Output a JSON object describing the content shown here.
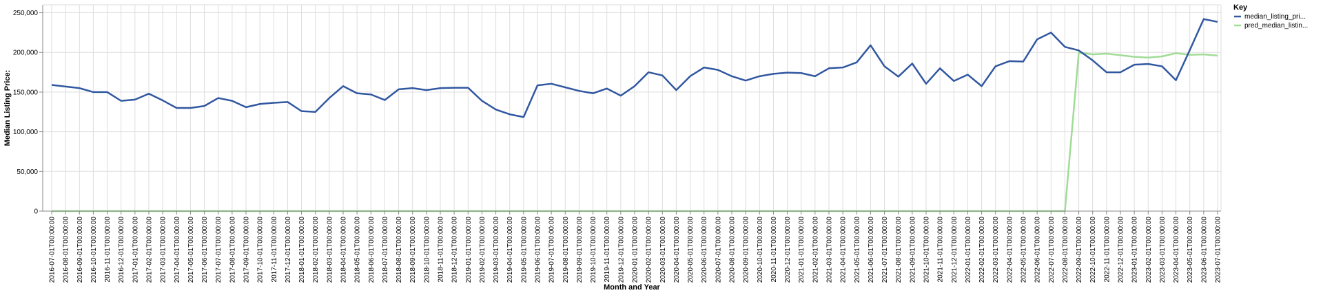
{
  "chart_data": {
    "type": "line",
    "xlabel": "Month and Year",
    "ylabel": "Median Listing Price:",
    "ylim": [
      0,
      260000
    ],
    "y_ticks": [
      0,
      50000,
      100000,
      150000,
      200000,
      250000
    ],
    "y_tick_labels": [
      "0",
      "50,000",
      "100,000",
      "150,000",
      "200,000",
      "250,000"
    ],
    "grid": true,
    "legend_title": "Key",
    "legend_position": "top-right",
    "x": [
      "2016-07-01T00:00:00",
      "2016-08-01T00:00:00",
      "2016-09-01T00:00:00",
      "2016-10-01T00:00:00",
      "2016-11-01T00:00:00",
      "2016-12-01T00:00:00",
      "2017-01-01T00:00:00",
      "2017-02-01T00:00:00",
      "2017-03-01T00:00:00",
      "2017-04-01T00:00:00",
      "2017-05-01T00:00:00",
      "2017-06-01T00:00:00",
      "2017-07-01T00:00:00",
      "2017-08-01T00:00:00",
      "2017-09-01T00:00:00",
      "2017-10-01T00:00:00",
      "2017-11-01T00:00:00",
      "2017-12-01T00:00:00",
      "2018-01-01T00:00:00",
      "2018-02-01T00:00:00",
      "2018-03-01T00:00:00",
      "2018-04-01T00:00:00",
      "2018-05-01T00:00:00",
      "2018-06-01T00:00:00",
      "2018-07-01T00:00:00",
      "2018-08-01T00:00:00",
      "2018-09-01T00:00:00",
      "2018-10-01T00:00:00",
      "2018-11-01T00:00:00",
      "2018-12-01T00:00:00",
      "2019-01-01T00:00:00",
      "2019-02-01T00:00:00",
      "2019-03-01T00:00:00",
      "2019-04-01T00:00:00",
      "2019-05-01T00:00:00",
      "2019-06-01T00:00:00",
      "2019-07-01T00:00:00",
      "2019-08-01T00:00:00",
      "2019-09-01T00:00:00",
      "2019-10-01T00:00:00",
      "2019-11-01T00:00:00",
      "2019-12-01T00:00:00",
      "2020-01-01T00:00:00",
      "2020-02-01T00:00:00",
      "2020-03-01T00:00:00",
      "2020-04-01T00:00:00",
      "2020-05-01T00:00:00",
      "2020-06-01T00:00:00",
      "2020-07-01T00:00:00",
      "2020-08-01T00:00:00",
      "2020-09-01T00:00:00",
      "2020-10-01T00:00:00",
      "2020-11-01T00:00:00",
      "2020-12-01T00:00:00",
      "2021-01-01T00:00:00",
      "2021-02-01T00:00:00",
      "2021-03-01T00:00:00",
      "2021-04-01T00:00:00",
      "2021-05-01T00:00:00",
      "2021-06-01T00:00:00",
      "2021-07-01T00:00:00",
      "2021-08-01T00:00:00",
      "2021-09-01T00:00:00",
      "2021-10-01T00:00:00",
      "2021-11-01T00:00:00",
      "2021-12-01T00:00:00",
      "2022-01-01T00:00:00",
      "2022-02-01T00:00:00",
      "2022-03-01T00:00:00",
      "2022-04-01T00:00:00",
      "2022-05-01T00:00:00",
      "2022-06-01T00:00:00",
      "2022-07-01T00:00:00",
      "2022-08-01T00:00:00",
      "2022-09-01T00:00:00",
      "2022-10-01T00:00:00",
      "2022-11-01T00:00:00",
      "2022-12-01T00:00:00",
      "2023-01-01T00:00:00",
      "2023-02-01T00:00:00",
      "2023-03-01T00:00:00",
      "2023-04-01T00:00:00",
      "2023-05-01T00:00:00",
      "2023-06-01T00:00:00",
      "2023-07-01T00:00:00"
    ],
    "series": [
      {
        "name": "median_listing_pri...",
        "color": "#3057a0",
        "values": [
          159000,
          157000,
          155000,
          150000,
          150000,
          139000,
          140500,
          148000,
          139500,
          130000,
          130000,
          132500,
          142500,
          139000,
          131000,
          135000,
          136500,
          137500,
          126000,
          125000,
          142500,
          157500,
          148500,
          147000,
          140000,
          153500,
          155000,
          152500,
          155000,
          155500,
          155500,
          139000,
          128000,
          122000,
          118500,
          158500,
          160500,
          156000,
          151500,
          148500,
          154500,
          145500,
          157500,
          175000,
          171000,
          152500,
          170000,
          181000,
          178000,
          170000,
          164500,
          170000,
          173000,
          174500,
          174000,
          170000,
          180000,
          181000,
          187500,
          209000,
          182500,
          169500,
          186000,
          160500,
          180000,
          164000,
          172000,
          157500,
          182500,
          189000,
          188500,
          216500,
          225000,
          207000,
          202500,
          190000,
          175000,
          175000,
          184500,
          185500,
          182500,
          165000,
          203000,
          242000,
          238500
        ]
      },
      {
        "name": "pred_median_listin...",
        "color": "#a0dc96",
        "values": [
          0,
          0,
          0,
          0,
          0,
          0,
          0,
          0,
          0,
          0,
          0,
          0,
          0,
          0,
          0,
          0,
          0,
          0,
          0,
          0,
          0,
          0,
          0,
          0,
          0,
          0,
          0,
          0,
          0,
          0,
          0,
          0,
          0,
          0,
          0,
          0,
          0,
          0,
          0,
          0,
          0,
          0,
          0,
          0,
          0,
          0,
          0,
          0,
          0,
          0,
          0,
          0,
          0,
          0,
          0,
          0,
          0,
          0,
          0,
          0,
          0,
          0,
          0,
          0,
          0,
          0,
          0,
          0,
          0,
          0,
          0,
          0,
          0,
          0,
          200000,
          197500,
          198500,
          196500,
          194500,
          193500,
          195000,
          199000,
          197000,
          197500,
          196000
        ]
      }
    ]
  }
}
